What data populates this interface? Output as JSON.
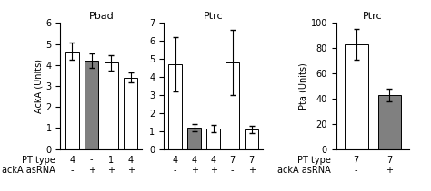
{
  "chart_data": [
    {
      "type": "bar",
      "title": "Pbad",
      "y_label": "AckA (Units)",
      "categories": [
        "4\n-",
        "-\n+",
        "1\n+",
        "4\n+"
      ],
      "category_levels": [
        "PT type",
        "ackA asRNA"
      ],
      "values": [
        4.65,
        4.2,
        4.1,
        3.4
      ],
      "errors": [
        0.4,
        0.35,
        0.35,
        0.25
      ],
      "colors": [
        "white",
        "gray",
        "white",
        "white"
      ],
      "ylim": [
        0,
        6
      ],
      "yticks": [
        0,
        1,
        2,
        3,
        4,
        5,
        6
      ]
    },
    {
      "type": "bar",
      "title": "Ptrc",
      "categories": [
        "4\n-",
        "4\n+",
        "4\n+",
        "7\n-",
        "7\n+"
      ],
      "values": [
        4.7,
        1.2,
        1.15,
        4.8,
        1.1
      ],
      "errors": [
        1.5,
        0.2,
        0.2,
        1.8,
        0.2
      ],
      "colors": [
        "white",
        "gray",
        "white",
        "white",
        "white"
      ],
      "ylim": [
        0,
        7
      ],
      "yticks": [
        0,
        1,
        2,
        3,
        4,
        5,
        6,
        7
      ]
    },
    {
      "type": "bar",
      "title": "Ptrc",
      "y_label": "Pta (Units)",
      "categories": [
        "7\n-",
        "7\n+"
      ],
      "category_levels": [
        "PT type",
        "ackA asRNA"
      ],
      "values": [
        83,
        43
      ],
      "errors": [
        12,
        5
      ],
      "colors": [
        "white",
        "gray"
      ],
      "ylim": [
        0,
        100
      ],
      "yticks": [
        0,
        20,
        40,
        60,
        80,
        100
      ]
    }
  ]
}
